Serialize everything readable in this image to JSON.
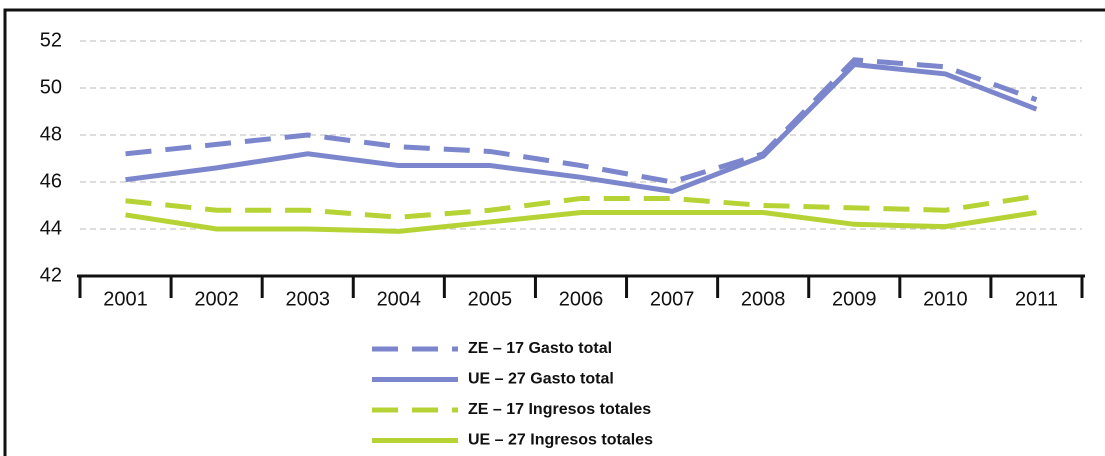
{
  "chart_data": {
    "type": "line",
    "categories": [
      "2001",
      "2002",
      "2003",
      "2004",
      "2005",
      "2006",
      "2007",
      "2008",
      "2009",
      "2010",
      "2011"
    ],
    "series": [
      {
        "name": "ZE – 17 Gasto total",
        "color": "#7b86cc",
        "dashed": true,
        "values": [
          47.2,
          47.6,
          48.0,
          47.5,
          47.3,
          46.7,
          46.0,
          47.2,
          51.2,
          50.9,
          49.5
        ]
      },
      {
        "name": "UE – 27 Gasto total",
        "color": "#7b86cc",
        "dashed": false,
        "values": [
          46.1,
          46.6,
          47.2,
          46.7,
          46.7,
          46.2,
          45.6,
          47.1,
          51.0,
          50.6,
          49.1
        ]
      },
      {
        "name": "ZE – 17 Ingresos totales",
        "color": "#b5d334",
        "dashed": true,
        "values": [
          45.2,
          44.8,
          44.8,
          44.5,
          44.8,
          45.3,
          45.3,
          45.0,
          44.9,
          44.8,
          45.4
        ]
      },
      {
        "name": "UE – 27 Ingresos totales",
        "color": "#b5d334",
        "dashed": false,
        "values": [
          44.6,
          44.0,
          44.0,
          43.9,
          44.3,
          44.7,
          44.7,
          44.7,
          44.2,
          44.1,
          44.7
        ]
      }
    ],
    "ylim": [
      42,
      52
    ],
    "yticks": [
      42,
      44,
      46,
      48,
      50,
      52
    ],
    "grid": true,
    "legend": "bottom"
  }
}
